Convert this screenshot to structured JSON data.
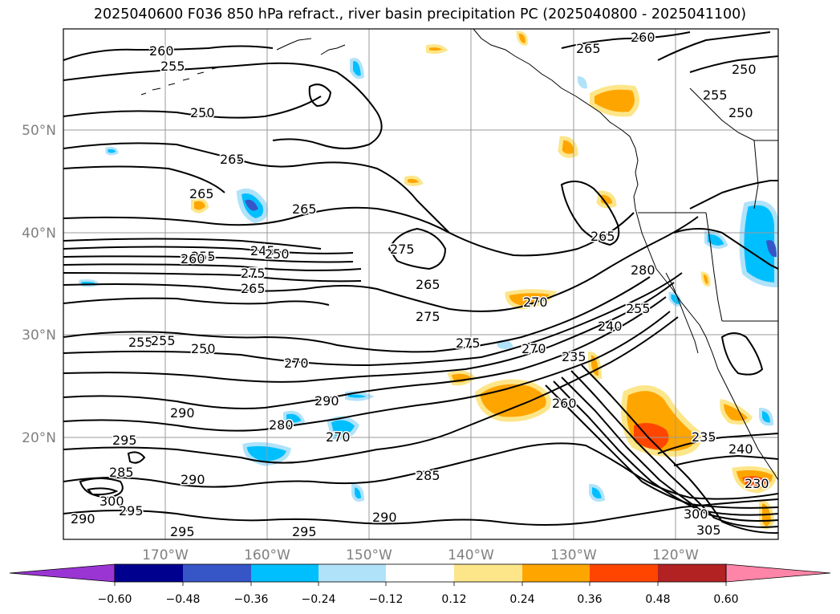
{
  "title": "2025040600 F036 850 hPa refract., river basin precipitation PC (2025040800 - 2025041100)",
  "latitude_labels": [
    "50°N",
    "40°N",
    "30°N",
    "20°N"
  ],
  "longitude_labels": [
    "170°W",
    "160°W",
    "150°W",
    "140°W",
    "130°W",
    "120°W"
  ],
  "colorbar": {
    "tick_labels": [
      "−0.60",
      "−0.48",
      "−0.36",
      "−0.24",
      "−0.12",
      "0.12",
      "0.24",
      "0.36",
      "0.48",
      "0.60"
    ],
    "colors": [
      "#9a35d4",
      "#00008f",
      "#3656c8",
      "#00bfff",
      "#b0e2fa",
      "#ffffff",
      "#fde68a",
      "#ffa500",
      "#ff4500",
      "#b22222",
      "#ff85a8"
    ],
    "extend": "both"
  },
  "contour_labels": [
    "260",
    "255",
    "250",
    "265",
    "265",
    "265",
    "245",
    "250",
    "255",
    "260",
    "275",
    "265",
    "275",
    "265",
    "275",
    "255",
    "255",
    "250",
    "270",
    "275",
    "290",
    "290",
    "295",
    "285",
    "290",
    "300",
    "295",
    "290",
    "295",
    "280",
    "270",
    "285",
    "290",
    "295",
    "265",
    "260",
    "250",
    "255",
    "250",
    "265",
    "280",
    "255",
    "240",
    "270",
    "235",
    "260",
    "270",
    "235",
    "240",
    "230",
    "300",
    "305"
  ],
  "colors": {
    "contour_line": "#000000",
    "gridline": "#808080",
    "coastline": "#000000",
    "axis_label": "#808080"
  }
}
